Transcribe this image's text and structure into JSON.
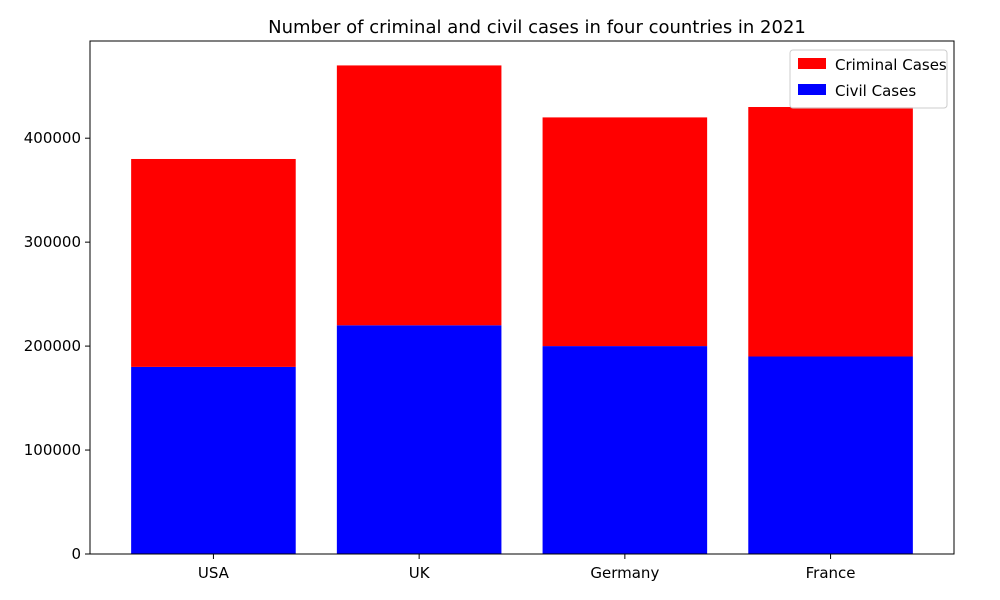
{
  "chart_data": {
    "type": "bar",
    "stacked": true,
    "title": "Number of criminal and civil cases in four countries in 2021",
    "xlabel": "",
    "ylabel": "",
    "categories": [
      "USA",
      "UK",
      "Germany",
      "France"
    ],
    "series": [
      {
        "name": "Civil Cases",
        "values": [
          180000,
          220000,
          200000,
          190000
        ],
        "color": "#0000ff"
      },
      {
        "name": "Criminal Cases",
        "values": [
          200000,
          250000,
          220000,
          240000
        ],
        "color": "#ff0000"
      }
    ],
    "ylim": [
      0,
      493500
    ],
    "yticks": [
      0,
      100000,
      200000,
      300000,
      400000
    ],
    "ytick_labels": [
      "0",
      "100000",
      "200000",
      "300000",
      "400000"
    ],
    "grid": false,
    "legend_position": "top-right",
    "legend_order": [
      "Criminal Cases",
      "Civil Cases"
    ]
  }
}
